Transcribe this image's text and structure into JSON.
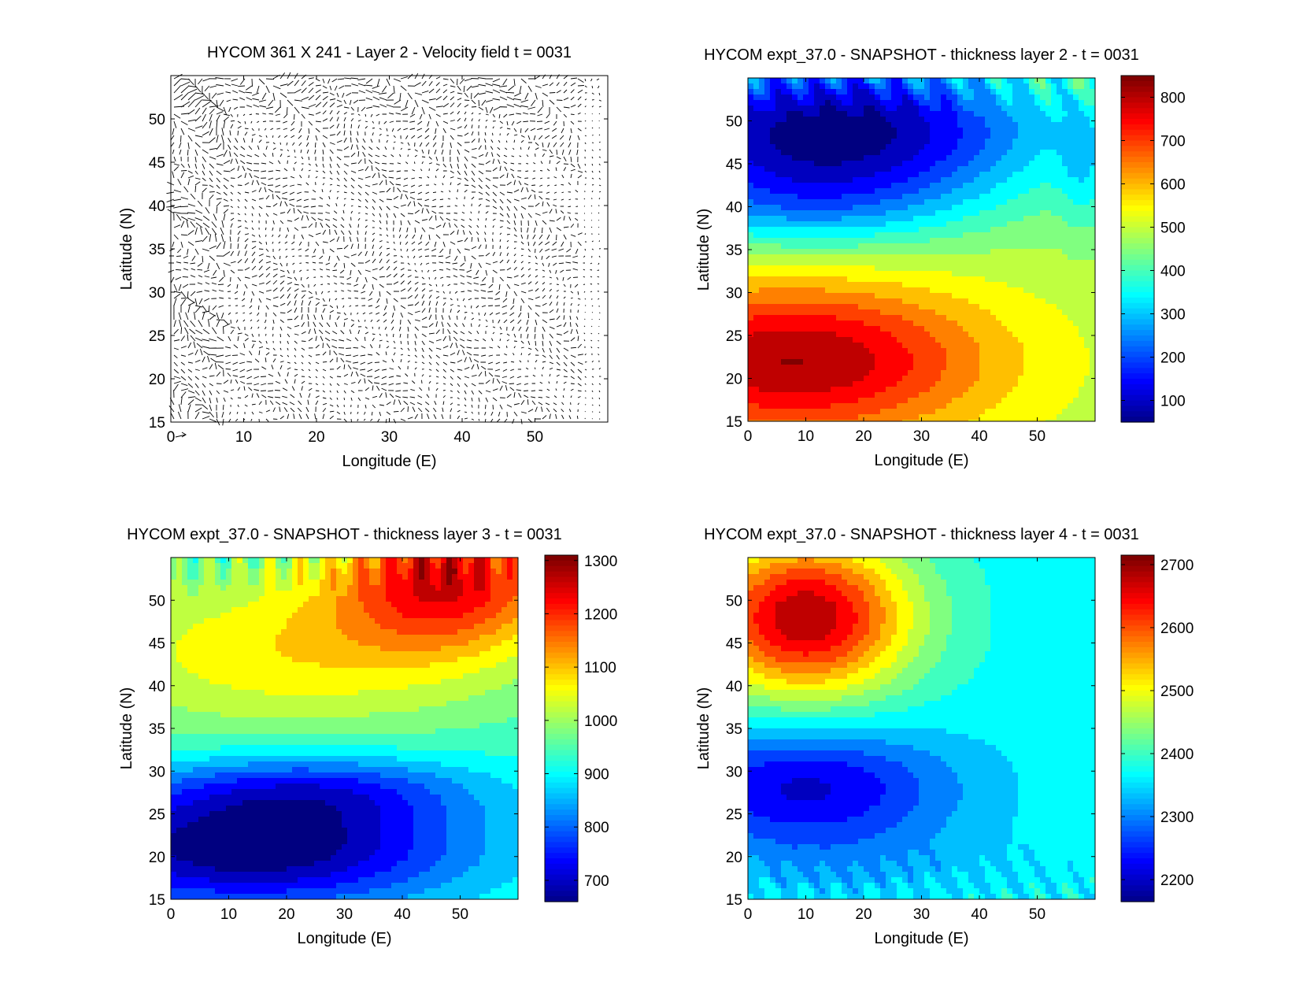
{
  "chart_data": [
    {
      "type": "quiver",
      "title": "HYCOM 361 X 241 - Layer 2 - Velocity field  t = 0031",
      "xlabel": "Longitude (E)",
      "ylabel": "Latitude (N)",
      "xlim": [
        0,
        60
      ],
      "ylim": [
        15,
        55
      ],
      "xticks": [
        0,
        10,
        20,
        30,
        40,
        50
      ],
      "yticks": [
        15,
        20,
        25,
        30,
        35,
        40,
        45,
        50
      ],
      "colorbar": null
    },
    {
      "type": "contourf",
      "title": "HYCOM expt_37.0 - SNAPSHOT - thickness layer 2 - t = 0031",
      "xlabel": "Longitude (E)",
      "ylabel": "Latitude (N)",
      "xlim": [
        0,
        60
      ],
      "ylim": [
        15,
        55
      ],
      "xticks": [
        0,
        10,
        20,
        30,
        40,
        50
      ],
      "yticks": [
        15,
        20,
        25,
        30,
        35,
        40,
        45,
        50
      ],
      "field": "layer2",
      "colorbar": {
        "min": 50,
        "max": 850,
        "ticks": [
          100,
          200,
          300,
          400,
          500,
          600,
          700,
          800
        ]
      }
    },
    {
      "type": "contourf",
      "title": "HYCOM expt_37.0 - SNAPSHOT - thickness layer 3 - t = 0031",
      "xlabel": "Longitude (E)",
      "ylabel": "Latitude (N)",
      "xlim": [
        0,
        60
      ],
      "ylim": [
        15,
        55
      ],
      "xticks": [
        0,
        10,
        20,
        30,
        40,
        50
      ],
      "yticks": [
        15,
        20,
        25,
        30,
        35,
        40,
        45,
        50
      ],
      "field": "layer3",
      "colorbar": {
        "min": 660,
        "max": 1310,
        "ticks": [
          700,
          800,
          900,
          1000,
          1100,
          1200,
          1300
        ]
      }
    },
    {
      "type": "contourf",
      "title": "HYCOM expt_37.0 - SNAPSHOT - thickness layer 4 - t = 0031",
      "xlabel": "Longitude (E)",
      "ylabel": "Latitude (N)",
      "xlim": [
        0,
        60
      ],
      "ylim": [
        15,
        55
      ],
      "xticks": [
        0,
        10,
        20,
        30,
        40,
        50
      ],
      "yticks": [
        15,
        20,
        25,
        30,
        35,
        40,
        45,
        50
      ],
      "field": "layer4",
      "colorbar": {
        "min": 2165,
        "max": 2715,
        "ticks": [
          2200,
          2300,
          2400,
          2500,
          2600,
          2700
        ]
      }
    }
  ]
}
